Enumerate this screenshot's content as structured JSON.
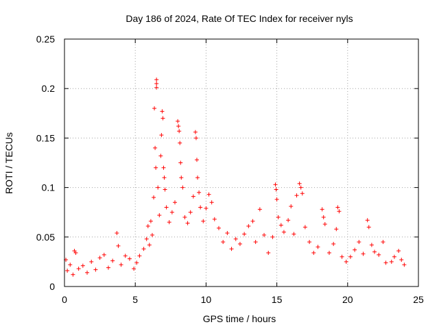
{
  "chart_data": {
    "type": "scatter",
    "title": "Day 186 of 2024, Rate Of TEC Index for receiver nyls",
    "xlabel": "GPS time / hours",
    "ylabel": "ROTI / TECUs",
    "xlim": [
      0,
      25
    ],
    "ylim": [
      0,
      0.25
    ],
    "xticks": [
      0,
      5,
      10,
      15,
      20,
      25
    ],
    "yticks": [
      0,
      0.05,
      0.1,
      0.15,
      0.2,
      0.25
    ],
    "xtick_labels": [
      "0",
      "5",
      "10",
      "15",
      "20",
      "25"
    ],
    "ytick_labels": [
      "0",
      "0.05",
      "0.1",
      "0.15",
      "0.2",
      "0.25"
    ],
    "grid": true,
    "marker": "+",
    "series": [
      {
        "name": "ROTI",
        "color": "#ff0000",
        "points": [
          [
            0.1,
            0.027
          ],
          [
            0.2,
            0.016
          ],
          [
            0.4,
            0.022
          ],
          [
            0.6,
            0.012
          ],
          [
            0.7,
            0.036
          ],
          [
            0.8,
            0.034
          ],
          [
            1.0,
            0.018
          ],
          [
            1.3,
            0.021
          ],
          [
            1.6,
            0.014
          ],
          [
            1.9,
            0.025
          ],
          [
            2.2,
            0.017
          ],
          [
            2.5,
            0.029
          ],
          [
            2.8,
            0.032
          ],
          [
            3.1,
            0.019
          ],
          [
            3.4,
            0.026
          ],
          [
            3.7,
            0.054
          ],
          [
            3.8,
            0.041
          ],
          [
            4.0,
            0.022
          ],
          [
            4.3,
            0.031
          ],
          [
            4.6,
            0.028
          ],
          [
            4.9,
            0.018
          ],
          [
            5.1,
            0.024
          ],
          [
            5.3,
            0.031
          ],
          [
            5.6,
            0.038
          ],
          [
            5.8,
            0.048
          ],
          [
            5.9,
            0.061
          ],
          [
            6.0,
            0.042
          ],
          [
            6.1,
            0.066
          ],
          [
            6.2,
            0.052
          ],
          [
            6.3,
            0.09
          ],
          [
            6.35,
            0.18
          ],
          [
            6.4,
            0.14
          ],
          [
            6.45,
            0.12
          ],
          [
            6.5,
            0.209
          ],
          [
            6.5,
            0.205
          ],
          [
            6.5,
            0.201
          ],
          [
            6.6,
            0.1
          ],
          [
            6.7,
            0.072
          ],
          [
            6.8,
            0.132
          ],
          [
            6.85,
            0.153
          ],
          [
            6.9,
            0.177
          ],
          [
            6.95,
            0.17
          ],
          [
            7.0,
            0.12
          ],
          [
            7.05,
            0.11
          ],
          [
            7.1,
            0.098
          ],
          [
            7.2,
            0.08
          ],
          [
            7.4,
            0.065
          ],
          [
            7.6,
            0.075
          ],
          [
            7.8,
            0.085
          ],
          [
            8.0,
            0.167
          ],
          [
            8.05,
            0.162
          ],
          [
            8.1,
            0.157
          ],
          [
            8.15,
            0.145
          ],
          [
            8.2,
            0.125
          ],
          [
            8.25,
            0.11
          ],
          [
            8.35,
            0.1
          ],
          [
            8.5,
            0.07
          ],
          [
            8.7,
            0.064
          ],
          [
            8.9,
            0.075
          ],
          [
            9.1,
            0.091
          ],
          [
            9.25,
            0.156
          ],
          [
            9.3,
            0.15
          ],
          [
            9.35,
            0.128
          ],
          [
            9.4,
            0.11
          ],
          [
            9.5,
            0.095
          ],
          [
            9.6,
            0.08
          ],
          [
            9.8,
            0.066
          ],
          [
            10.0,
            0.079
          ],
          [
            10.2,
            0.093
          ],
          [
            10.4,
            0.085
          ],
          [
            10.6,
            0.068
          ],
          [
            10.9,
            0.059
          ],
          [
            11.2,
            0.045
          ],
          [
            11.5,
            0.054
          ],
          [
            11.8,
            0.038
          ],
          [
            12.1,
            0.048
          ],
          [
            12.4,
            0.043
          ],
          [
            12.7,
            0.053
          ],
          [
            13.0,
            0.061
          ],
          [
            13.3,
            0.066
          ],
          [
            13.5,
            0.045
          ],
          [
            13.8,
            0.078
          ],
          [
            14.1,
            0.052
          ],
          [
            14.4,
            0.034
          ],
          [
            14.7,
            0.05
          ],
          [
            14.9,
            0.103
          ],
          [
            14.95,
            0.098
          ],
          [
            15.0,
            0.088
          ],
          [
            15.1,
            0.07
          ],
          [
            15.3,
            0.062
          ],
          [
            15.5,
            0.055
          ],
          [
            15.8,
            0.067
          ],
          [
            16.0,
            0.081
          ],
          [
            16.2,
            0.053
          ],
          [
            16.4,
            0.092
          ],
          [
            16.6,
            0.104
          ],
          [
            16.7,
            0.1
          ],
          [
            16.8,
            0.094
          ],
          [
            17.0,
            0.06
          ],
          [
            17.3,
            0.045
          ],
          [
            17.6,
            0.034
          ],
          [
            17.9,
            0.04
          ],
          [
            18.2,
            0.078
          ],
          [
            18.3,
            0.07
          ],
          [
            18.4,
            0.063
          ],
          [
            18.7,
            0.034
          ],
          [
            19.0,
            0.043
          ],
          [
            19.2,
            0.058
          ],
          [
            19.3,
            0.08
          ],
          [
            19.4,
            0.076
          ],
          [
            19.6,
            0.03
          ],
          [
            19.9,
            0.025
          ],
          [
            20.2,
            0.03
          ],
          [
            20.5,
            0.037
          ],
          [
            20.8,
            0.045
          ],
          [
            21.1,
            0.033
          ],
          [
            21.4,
            0.067
          ],
          [
            21.5,
            0.06
          ],
          [
            21.7,
            0.042
          ],
          [
            21.9,
            0.035
          ],
          [
            22.2,
            0.032
          ],
          [
            22.5,
            0.045
          ],
          [
            22.7,
            0.024
          ],
          [
            23.1,
            0.025
          ],
          [
            23.3,
            0.03
          ],
          [
            23.6,
            0.036
          ],
          [
            23.8,
            0.027
          ],
          [
            24.0,
            0.022
          ]
        ]
      }
    ]
  }
}
